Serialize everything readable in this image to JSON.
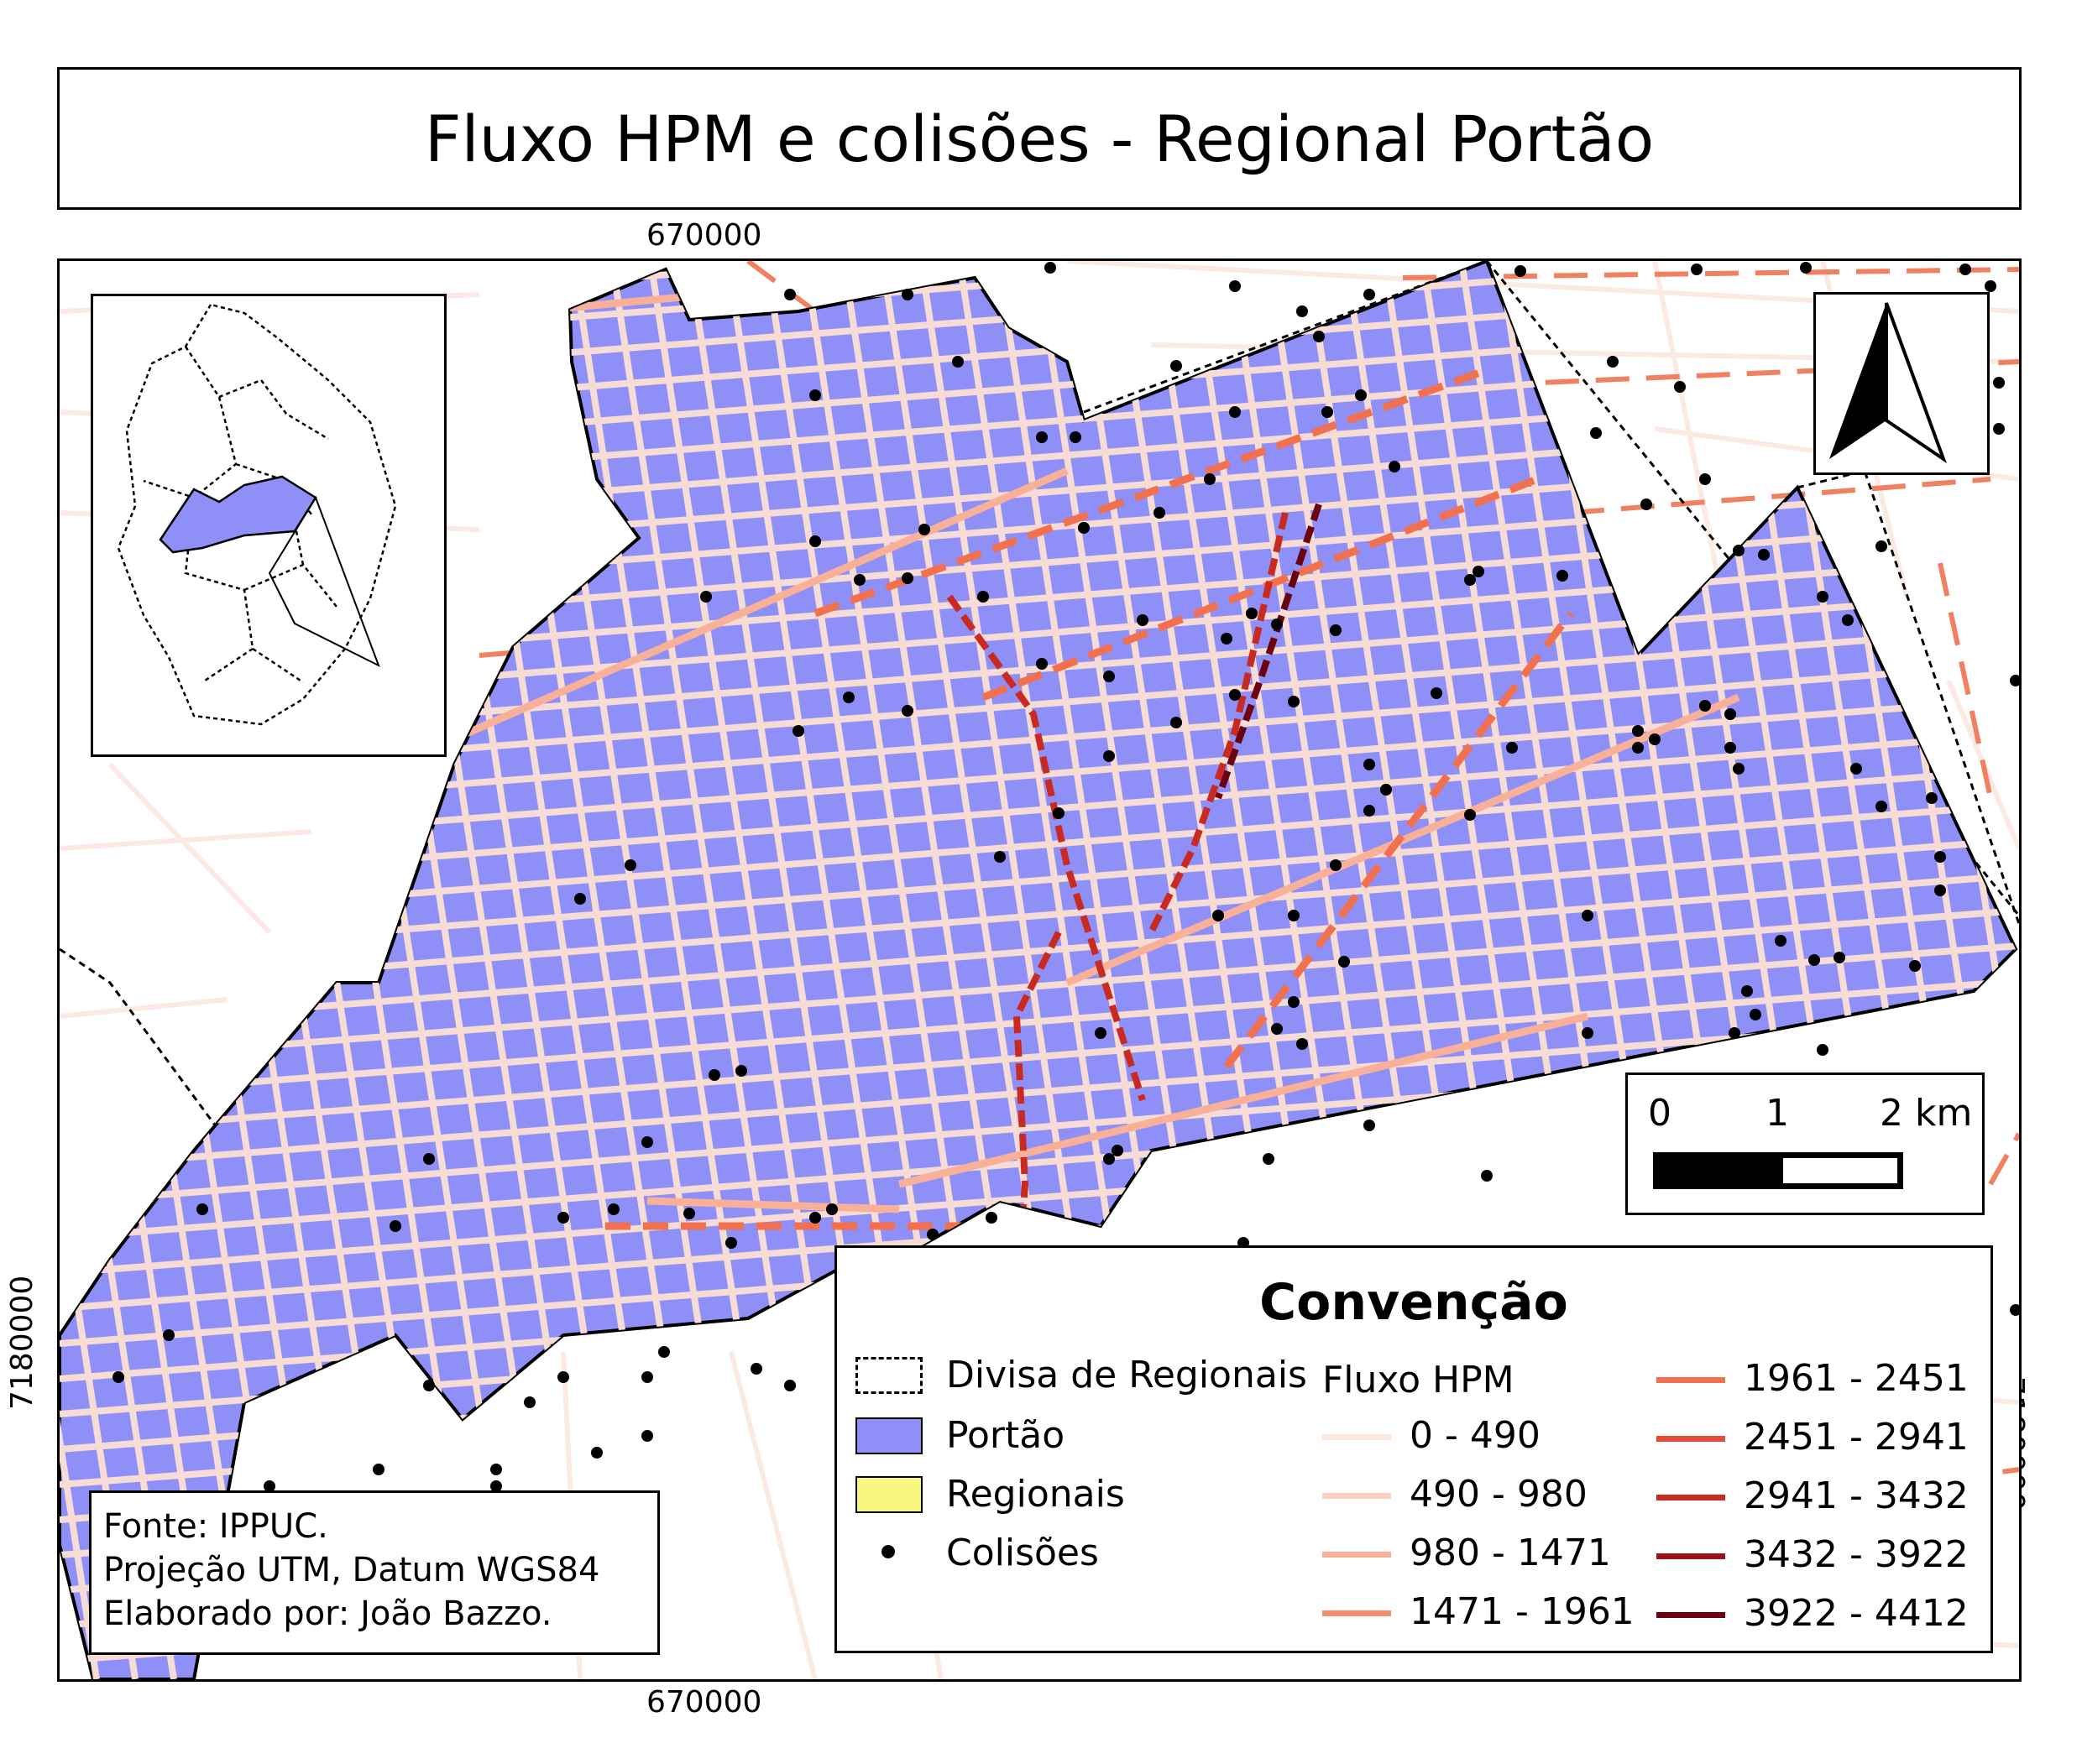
{
  "title": "Fluxo HPM e colisões - Regional Portão",
  "coordinates": {
    "top": "670000",
    "bottom": "670000",
    "left": "7180000",
    "right": "7180000"
  },
  "scale_bar": {
    "labels": [
      "0",
      "1",
      "2 km"
    ]
  },
  "legend": {
    "title": "Convenção",
    "items": {
      "divisa": "Divisa de Regionais",
      "portao": "Portão",
      "regionais": "Regionais",
      "colisoes": "Colisões"
    },
    "flux_title": "Fluxo HPM",
    "flux_classes": [
      {
        "label": "0 - 490",
        "color": "#fde8e0"
      },
      {
        "label": "490 - 980",
        "color": "#fbd0c0"
      },
      {
        "label": "980 - 1471",
        "color": "#f8b098"
      },
      {
        "label": "1471 - 1961",
        "color": "#f49070"
      },
      {
        "label": "1961 - 2451",
        "color": "#f07050"
      },
      {
        "label": "2451 - 2941",
        "color": "#e54a35"
      },
      {
        "label": "2941 - 3432",
        "color": "#c82a22"
      },
      {
        "label": "3432 - 3922",
        "color": "#a01018"
      },
      {
        "label": "3922 - 4412",
        "color": "#6a0010"
      }
    ]
  },
  "source": {
    "line1": "Fonte: IPPUC.",
    "line2": "Projeção UTM, Datum WGS84",
    "line3": "Elaborado por: João Bazzo."
  },
  "colors": {
    "portao_fill": "#8f8ff8",
    "regionais_fill": "#f8f880",
    "collision": "#000000",
    "street_portao": "#f6dcd4"
  }
}
